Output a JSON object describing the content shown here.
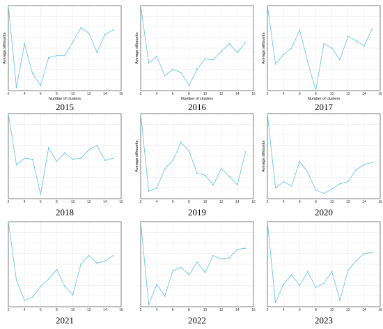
{
  "figure": {
    "line_color": "#6ec6e6",
    "axis_color": "#333333",
    "grid_color": "#e6e6e6"
  },
  "chart_data": [
    {
      "type": "line",
      "title": "2015",
      "xlabel": "Number of clusters",
      "ylabel": "Average silhouette",
      "xlim": [
        2,
        16
      ],
      "ylim": [
        0,
        8
      ],
      "grid": true,
      "x": [
        2,
        3,
        4,
        5,
        6,
        7,
        8,
        9,
        10,
        11,
        12,
        13,
        14,
        15
      ],
      "series": [
        {
          "values": [
            8,
            0.3,
            4.4,
            1.6,
            0.5,
            3.1,
            3.3,
            3.3,
            4.6,
            5.9,
            5.4,
            3.6,
            5.3,
            5.7
          ]
        }
      ]
    },
    {
      "type": "line",
      "title": "2016",
      "xlabel": "Number of clusters",
      "ylabel": "Average silhouette",
      "xlim": [
        2,
        16
      ],
      "ylim": [
        0,
        8
      ],
      "grid": true,
      "x": [
        2,
        3,
        4,
        5,
        6,
        7,
        8,
        9,
        10,
        11,
        12,
        13,
        14,
        15
      ],
      "series": [
        {
          "values": [
            8,
            2.6,
            3.2,
            1.4,
            2.0,
            1.7,
            0.5,
            2.0,
            3.0,
            2.9,
            3.7,
            4.4,
            3.6,
            4.5
          ]
        }
      ]
    },
    {
      "type": "line",
      "title": "2017",
      "xlabel": "Number of clusters",
      "ylabel": "Average silhouette",
      "xlim": [
        2,
        16
      ],
      "ylim": [
        0,
        8
      ],
      "grid": true,
      "x": [
        2,
        3,
        4,
        5,
        6,
        7,
        8,
        9,
        10,
        11,
        12,
        13,
        14,
        15
      ],
      "series": [
        {
          "values": [
            8,
            2.5,
            3.4,
            4.0,
            5.7,
            2.7,
            0,
            4.4,
            4.0,
            2.9,
            5.1,
            4.7,
            4.2,
            5.8
          ]
        }
      ]
    },
    {
      "type": "line",
      "title": "2018",
      "xlabel": "",
      "ylabel": "",
      "xlim": [
        2,
        16
      ],
      "ylim": [
        0,
        8
      ],
      "grid": true,
      "x": [
        2,
        3,
        4,
        5,
        6,
        7,
        8,
        9,
        10,
        11,
        12,
        13,
        14,
        15
      ],
      "series": [
        {
          "values": [
            8,
            3.2,
            3.8,
            3.7,
            0.4,
            4.8,
            3.5,
            4.3,
            3.7,
            3.8,
            4.6,
            5.0,
            3.6,
            3.8
          ]
        }
      ]
    },
    {
      "type": "line",
      "title": "2019",
      "xlabel": "",
      "ylabel": "Average silhouette",
      "xlim": [
        2,
        16
      ],
      "ylim": [
        0,
        8
      ],
      "grid": true,
      "x": [
        2,
        3,
        4,
        5,
        6,
        7,
        8,
        9,
        10,
        11,
        12,
        13,
        14,
        15
      ],
      "series": [
        {
          "values": [
            8,
            0.7,
            1.0,
            2.8,
            3.6,
            5.3,
            4.5,
            2.4,
            2.2,
            1.3,
            2.8,
            2.1,
            1.3,
            4.4
          ]
        }
      ]
    },
    {
      "type": "line",
      "title": "2020",
      "xlabel": "",
      "ylabel": "Average silhouette",
      "xlim": [
        2,
        16
      ],
      "ylim": [
        0,
        8
      ],
      "grid": true,
      "x": [
        2,
        3,
        4,
        5,
        6,
        7,
        8,
        9,
        10,
        11,
        12,
        13,
        14,
        15
      ],
      "series": [
        {
          "values": [
            8,
            1.0,
            1.6,
            1.2,
            3.5,
            2.5,
            0.8,
            0.5,
            0.9,
            1.4,
            1.6,
            2.7,
            3.2,
            3.4
          ]
        }
      ]
    },
    {
      "type": "line",
      "title": "2021",
      "xlabel": "",
      "ylabel": "",
      "xlim": [
        2,
        16
      ],
      "ylim": [
        0,
        8
      ],
      "grid": true,
      "x": [
        2,
        3,
        4,
        5,
        6,
        7,
        8,
        9,
        10,
        11,
        12,
        13,
        14,
        15
      ],
      "series": [
        {
          "values": [
            8,
            2.5,
            0.6,
            0.9,
            1.9,
            2.6,
            3.5,
            1.9,
            1.1,
            4.0,
            4.8,
            4.1,
            4.3,
            4.8
          ]
        }
      ]
    },
    {
      "type": "line",
      "title": "2022",
      "xlabel": "",
      "ylabel": "",
      "xlim": [
        2,
        16
      ],
      "ylim": [
        0,
        8
      ],
      "grid": true,
      "x": [
        2,
        3,
        4,
        5,
        6,
        7,
        8,
        9,
        10,
        11,
        12,
        13,
        14,
        15
      ],
      "series": [
        {
          "values": [
            8,
            0.2,
            2.1,
            1.0,
            3.4,
            3.7,
            3.0,
            4.2,
            3.2,
            4.8,
            4.5,
            4.6,
            5.4,
            5.5
          ]
        }
      ]
    },
    {
      "type": "line",
      "title": "2023",
      "xlabel": "",
      "ylabel": "",
      "xlim": [
        2,
        16
      ],
      "ylim": [
        0,
        8
      ],
      "grid": true,
      "x": [
        2,
        3,
        4,
        5,
        6,
        7,
        8,
        9,
        10,
        11,
        12,
        13,
        14,
        15
      ],
      "series": [
        {
          "values": [
            8,
            0.4,
            2.1,
            3.0,
            2.0,
            3.3,
            1.8,
            2.2,
            3.3,
            0.6,
            3.4,
            4.3,
            5.0,
            5.1
          ]
        }
      ]
    }
  ]
}
